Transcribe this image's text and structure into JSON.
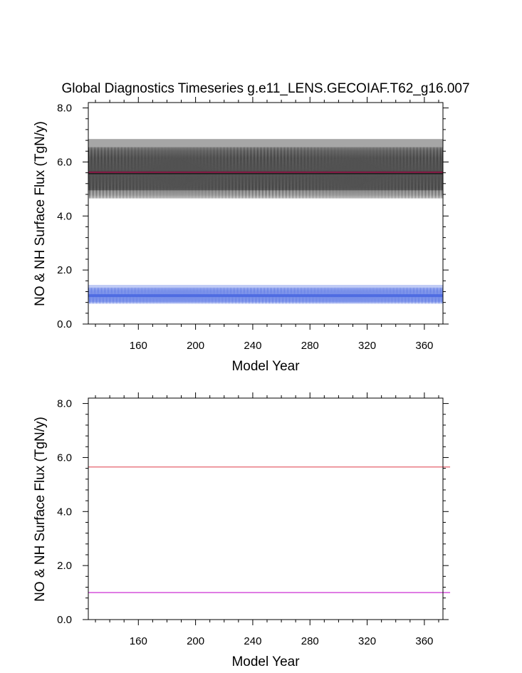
{
  "figure": {
    "title": "Global Diagnostics Timeseries g.e11_LENS.GECOIAF.T62_g16.007"
  },
  "chart_data": [
    {
      "type": "line",
      "title": "Global Diagnostics Timeseries g.e11_LENS.GECOIAF.T62_g16.007",
      "xlabel": "Model Year",
      "ylabel": "NO & NH Surface Flux (TgN/y)",
      "xlim": [
        125,
        373
      ],
      "ylim": [
        0.0,
        8.2
      ],
      "xticks": [
        160,
        200,
        240,
        280,
        320,
        360
      ],
      "xtick_labels": [
        "160",
        "200",
        "240",
        "280",
        "320",
        "360"
      ],
      "yticks": [
        0.0,
        2.0,
        4.0,
        6.0,
        8.0
      ],
      "ytick_labels": [
        "0.0",
        "2.0",
        "4.0",
        "6.0",
        "8.0"
      ],
      "grid": false,
      "series": [
        {
          "style": "monthly",
          "color": "#000000",
          "x_start": 125,
          "x_end": 373,
          "mean": 5.6,
          "amplitude": 0.95,
          "cycle_years": 1,
          "envelope_min": 4.95,
          "envelope_max": 6.85
        },
        {
          "style": "annual-mean",
          "color": "#c2185b",
          "x": [
            125,
            373
          ],
          "y": [
            5.62,
            5.62
          ]
        },
        {
          "style": "monthly",
          "color": "#3355dd",
          "x_start": 125,
          "x_end": 373,
          "mean": 1.05,
          "amplitude": 0.3,
          "cycle_years": 1,
          "envelope_min": 0.8,
          "envelope_max": 1.45
        }
      ]
    },
    {
      "type": "line",
      "title": "",
      "xlabel": "Model Year",
      "ylabel": "NO & NH Surface Flux (TgN/y)",
      "xlim": [
        125,
        373
      ],
      "ylim": [
        0.0,
        8.2
      ],
      "xticks": [
        160,
        200,
        240,
        280,
        320,
        360
      ],
      "xtick_labels": [
        "160",
        "200",
        "240",
        "280",
        "320",
        "360"
      ],
      "yticks": [
        0.0,
        2.0,
        4.0,
        6.0,
        8.0
      ],
      "ytick_labels": [
        "0.0",
        "2.0",
        "4.0",
        "6.0",
        "8.0"
      ],
      "grid": false,
      "series": [
        {
          "color": "#e8707a",
          "x": [
            125,
            378
          ],
          "y": [
            5.65,
            5.65
          ]
        },
        {
          "color": "#d040d8",
          "x": [
            125,
            378
          ],
          "y": [
            1.0,
            1.0
          ]
        }
      ]
    }
  ]
}
